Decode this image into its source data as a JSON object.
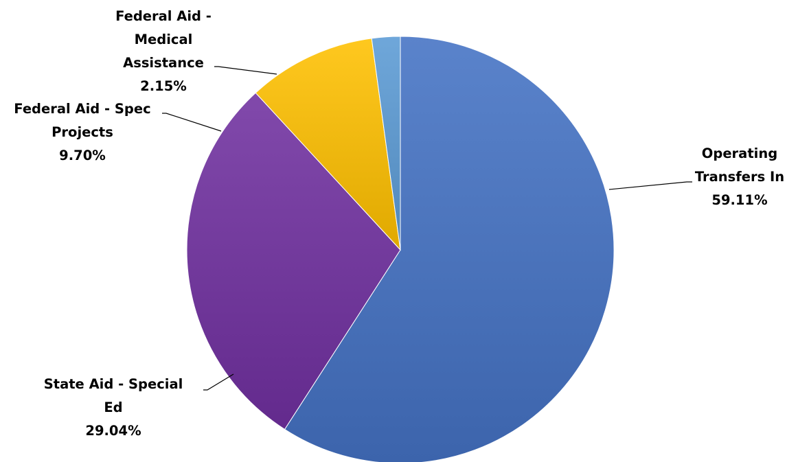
{
  "chart_data": {
    "type": "pie",
    "title": "",
    "slices": [
      {
        "name": "Operating Transfers In",
        "label_lines": [
          "Operating",
          "Transfers In"
        ],
        "value": 59.11,
        "percent_label": "59.11%",
        "color": "#4472c4"
      },
      {
        "name": "State Aid - Special Ed",
        "label_lines": [
          "State Aid - Special",
          "Ed"
        ],
        "value": 29.04,
        "percent_label": "29.04%",
        "color": "#7030a0"
      },
      {
        "name": "Federal Aid - Spec Projects",
        "label_lines": [
          "Federal Aid - Spec",
          "Projects"
        ],
        "value": 9.7,
        "percent_label": "9.70%",
        "color": "#ffc000"
      },
      {
        "name": "Federal Aid - Medical Assistance",
        "label_lines": [
          "Federal Aid -",
          "Medical",
          "Assistance"
        ],
        "value": 2.15,
        "percent_label": "2.15%",
        "color": "#5b9bd5"
      }
    ],
    "start_angle_deg": 0,
    "direction": "clockwise",
    "legend": "none",
    "data_labels": "outside-with-leader-lines"
  }
}
